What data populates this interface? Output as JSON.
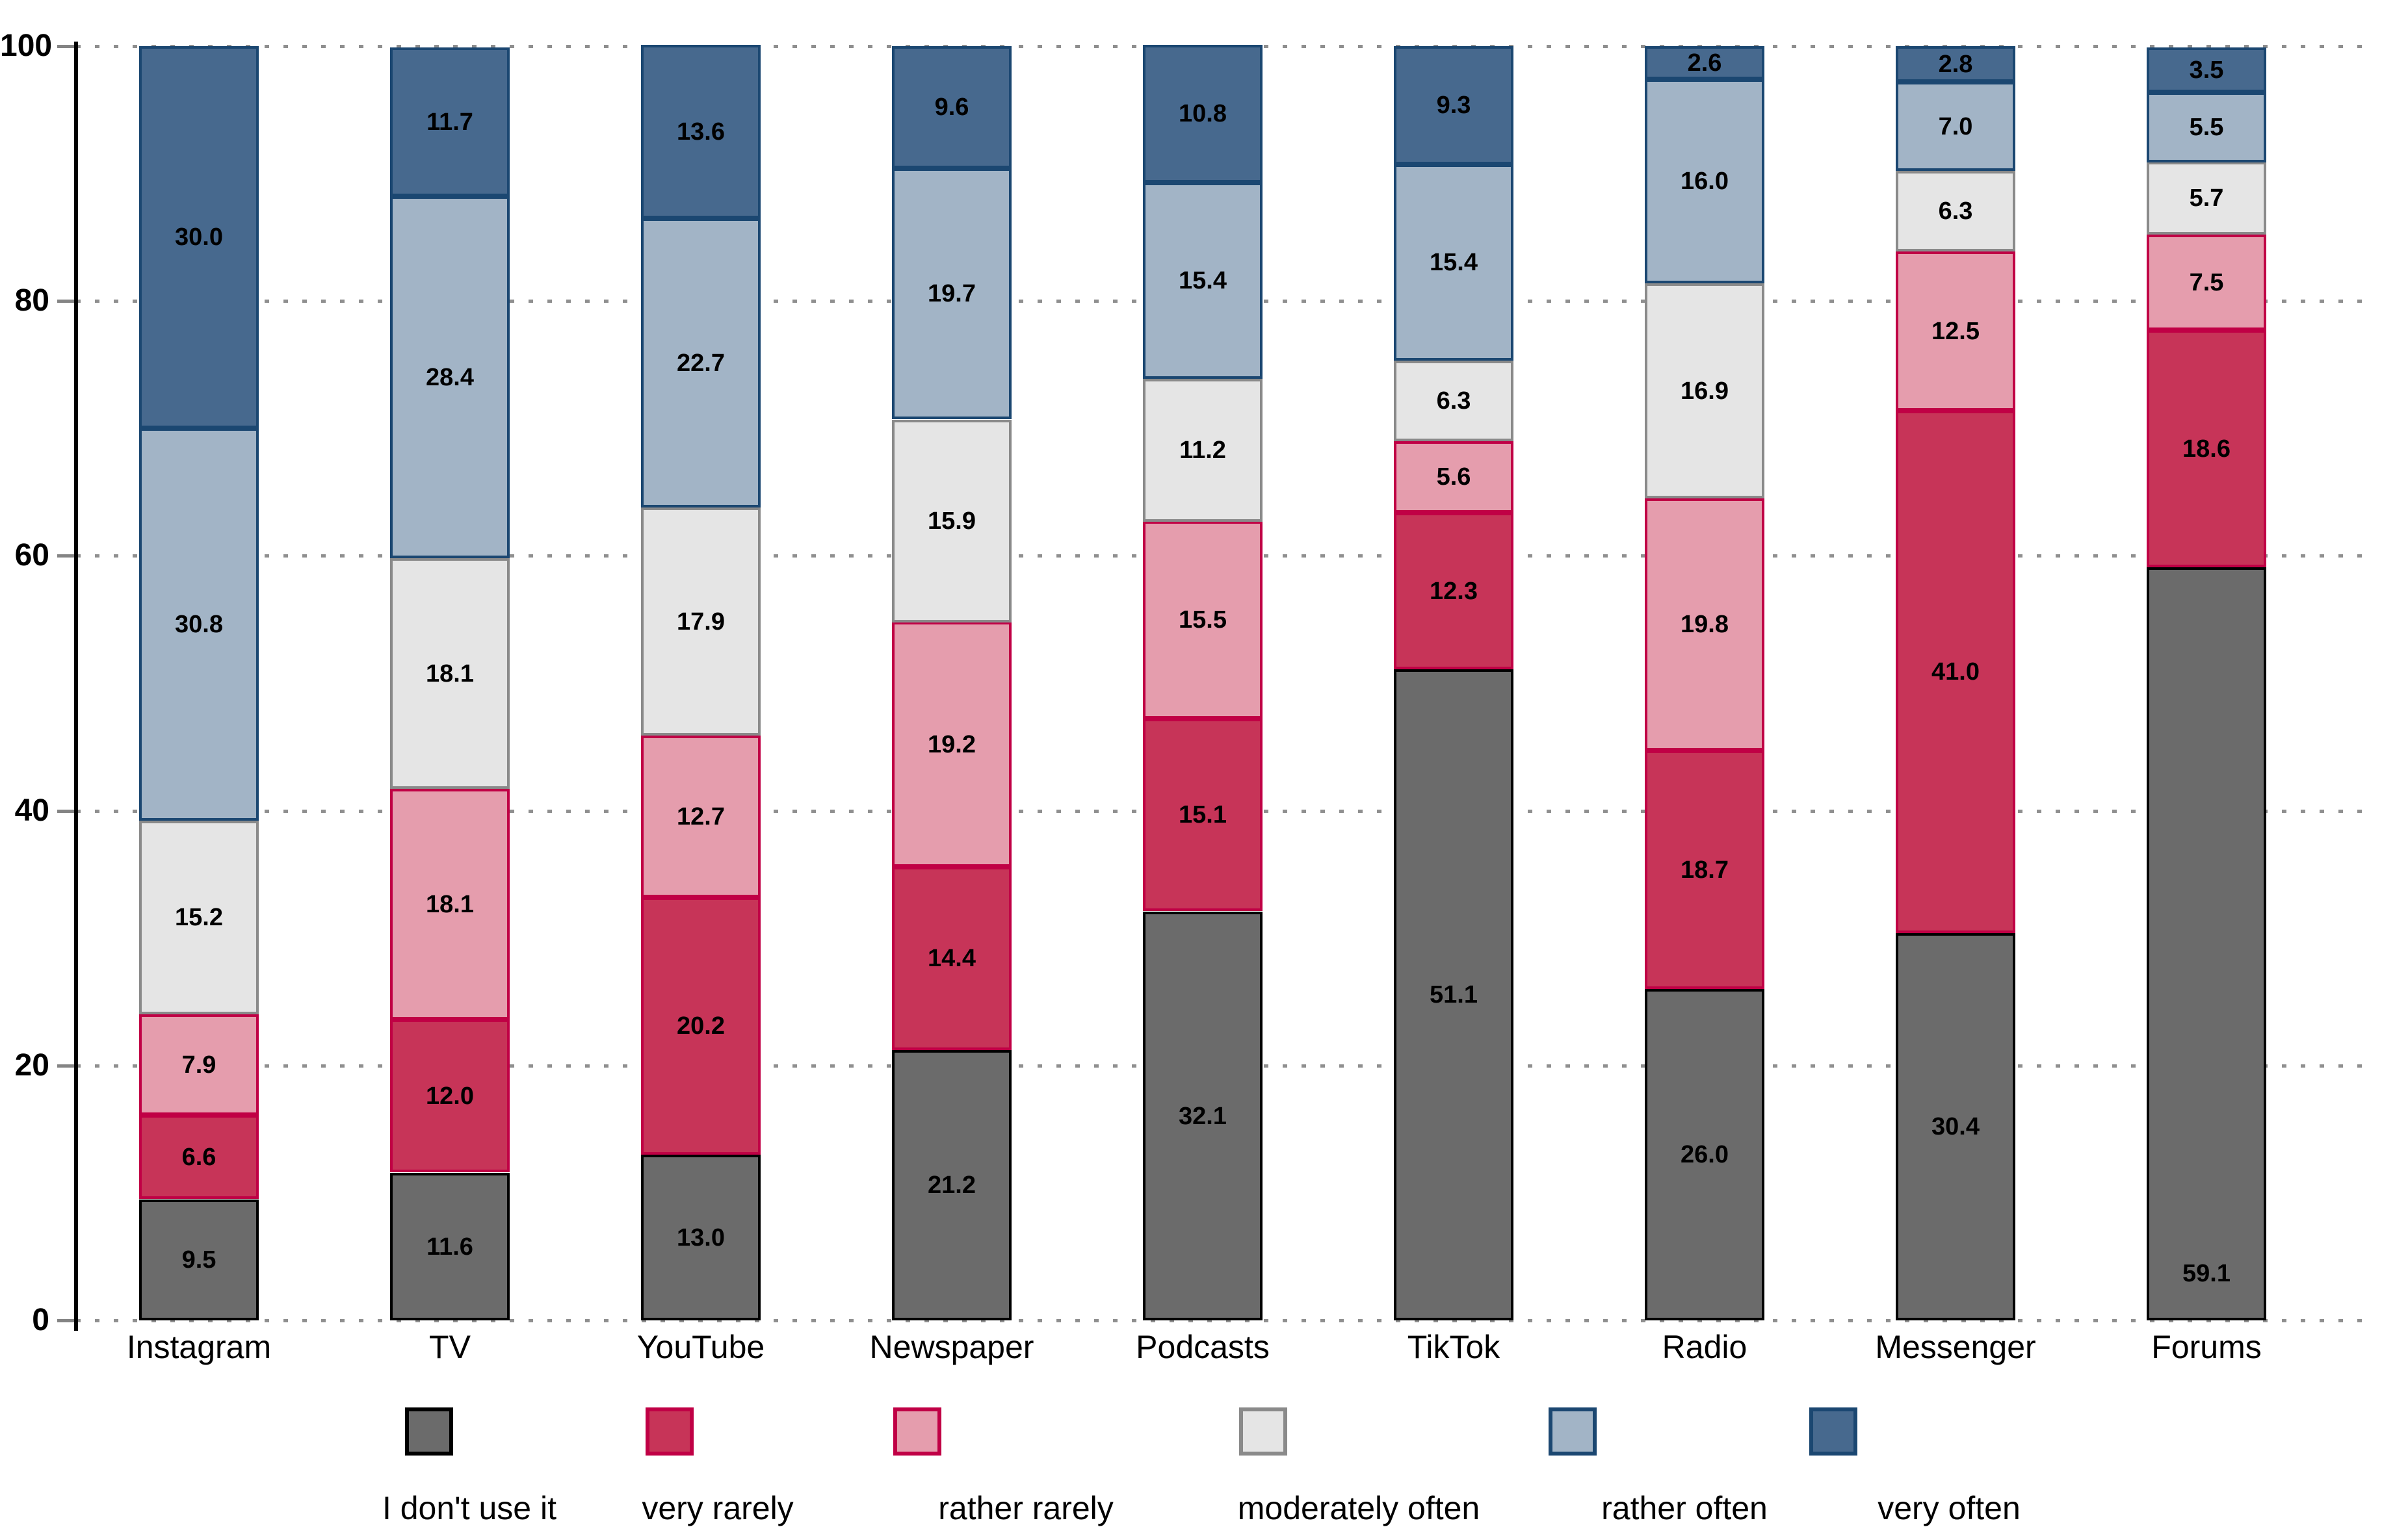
{
  "chart_data": {
    "type": "bar",
    "stacked": true,
    "title": "",
    "xlabel": "",
    "ylabel": "",
    "ylim": [
      0,
      100
    ],
    "yticks": [
      0,
      20,
      40,
      60,
      80,
      100
    ],
    "grid": "horizontal dotted",
    "legend_position": "bottom",
    "value_labels": true,
    "categories": [
      "Instagram",
      "TV",
      "YouTube",
      "Newspaper",
      "Podcasts",
      "TikTok",
      "Radio",
      "Messenger",
      "Forums"
    ],
    "series": [
      {
        "name": "I don't use it",
        "color": "#6B6B6B",
        "border": "#000000",
        "values": [
          9.5,
          11.6,
          13.0,
          21.2,
          32.1,
          51.1,
          26.0,
          30.4,
          59.1
        ]
      },
      {
        "name": "very rarely",
        "color": "#C73458",
        "border": "#C00045",
        "values": [
          6.6,
          12.0,
          20.2,
          14.4,
          15.1,
          12.3,
          18.7,
          41.0,
          18.6
        ]
      },
      {
        "name": "rather rarely",
        "color": "#E59DAD",
        "border": "#C00045",
        "values": [
          7.9,
          18.1,
          12.7,
          19.2,
          15.5,
          5.6,
          19.8,
          12.5,
          7.5
        ]
      },
      {
        "name": "moderately often",
        "color": "#E5E5E5",
        "border": "#8A8A8A",
        "values": [
          15.2,
          18.1,
          17.9,
          15.9,
          11.2,
          6.3,
          16.9,
          6.3,
          5.7
        ]
      },
      {
        "name": "rather often",
        "color": "#A2B4C6",
        "border": "#1B4771",
        "values": [
          30.8,
          28.4,
          22.7,
          19.7,
          15.4,
          15.4,
          16.0,
          7.0,
          5.5
        ]
      },
      {
        "name": "very often",
        "color": "#47698E",
        "border": "#1B4771",
        "values": [
          30.0,
          11.7,
          13.6,
          9.6,
          10.8,
          9.3,
          2.6,
          2.8,
          3.5
        ]
      }
    ],
    "label_exceptions": [
      {
        "category": "Forums",
        "series": "I don't use it",
        "anchor": "bottom"
      }
    ],
    "legend": [
      "I don't use it",
      "very rarely",
      "rather rarely",
      "moderately often",
      "rather often",
      "very often"
    ]
  }
}
